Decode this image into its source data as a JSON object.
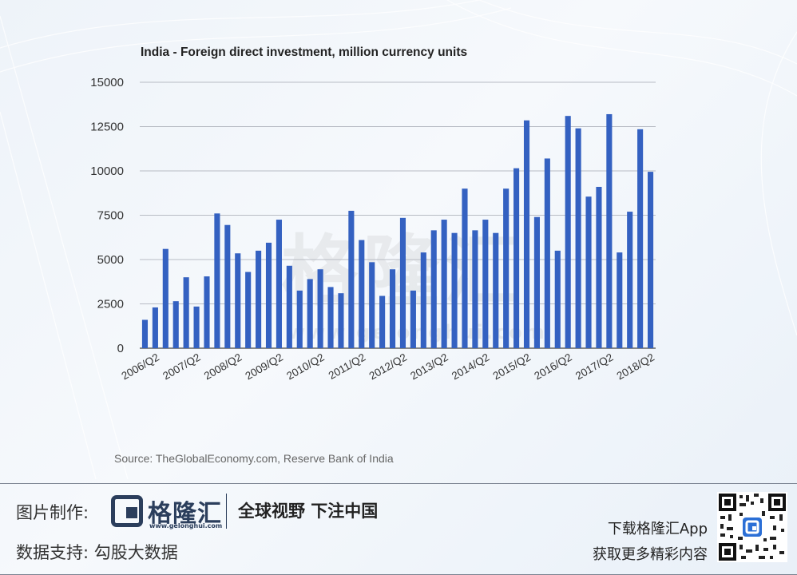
{
  "chart_data": {
    "type": "bar",
    "title": "India - Foreign direct investment, million currency units",
    "xlabel": "",
    "ylabel": "",
    "ylim": [
      0,
      15000
    ],
    "yticks": [
      0,
      2500,
      5000,
      7500,
      10000,
      12500,
      15000
    ],
    "x_tick_labels": [
      "2006/Q2",
      "2007/Q2",
      "2008/Q2",
      "2009/Q2",
      "2010/Q2",
      "2011/Q2",
      "2012/Q2",
      "2013/Q2",
      "2014/Q2",
      "2015/Q2",
      "2016/Q2",
      "2017/Q2",
      "2018/Q2"
    ],
    "categories": [
      "2006/Q1",
      "2006/Q2",
      "2006/Q3",
      "2006/Q4",
      "2007/Q1",
      "2007/Q2",
      "2007/Q3",
      "2007/Q4",
      "2008/Q1",
      "2008/Q2",
      "2008/Q3",
      "2008/Q4",
      "2009/Q1",
      "2009/Q2",
      "2009/Q3",
      "2009/Q4",
      "2010/Q1",
      "2010/Q2",
      "2010/Q3",
      "2010/Q4",
      "2011/Q1",
      "2011/Q2",
      "2011/Q3",
      "2011/Q4",
      "2012/Q1",
      "2012/Q2",
      "2012/Q3",
      "2012/Q4",
      "2013/Q1",
      "2013/Q2",
      "2013/Q3",
      "2013/Q4",
      "2014/Q1",
      "2014/Q2",
      "2014/Q3",
      "2014/Q4",
      "2015/Q1",
      "2015/Q2",
      "2015/Q3",
      "2015/Q4",
      "2016/Q1",
      "2016/Q2",
      "2016/Q3",
      "2016/Q4",
      "2017/Q1",
      "2017/Q2",
      "2017/Q3",
      "2017/Q4",
      "2018/Q1",
      "2018/Q2"
    ],
    "values": [
      1600,
      2300,
      5600,
      2650,
      4000,
      2350,
      4050,
      7600,
      6950,
      5350,
      4300,
      5500,
      5950,
      7250,
      4650,
      3250,
      3900,
      4450,
      3450,
      3100,
      7750,
      6100,
      4850,
      2950,
      4450,
      7350,
      3250,
      5400,
      6650,
      7250,
      6500,
      9000,
      6650,
      7250,
      6500,
      9000,
      10150,
      12850,
      7400,
      10700,
      5500,
      13100,
      12400,
      8550,
      9100,
      13200,
      5400,
      7700,
      12350,
      9950
    ],
    "grid": true,
    "legend": "none",
    "bar_color": "#3461c1"
  },
  "source_text": "Source: TheGlobalEconomy.com, Reserve Bank of India",
  "watermark": {
    "text": "格隆汇",
    "url": "www.gelonghui.com"
  },
  "footer": {
    "credit_label": "图片制作:",
    "logo_text": "格隆汇",
    "logo_url": "www.gelonghui.com",
    "slogan": "全球视野 下注中国",
    "data_label": "数据支持:  勾股大数据",
    "app_line1": "下载格隆汇App",
    "app_line2": "获取更多精彩内容"
  }
}
